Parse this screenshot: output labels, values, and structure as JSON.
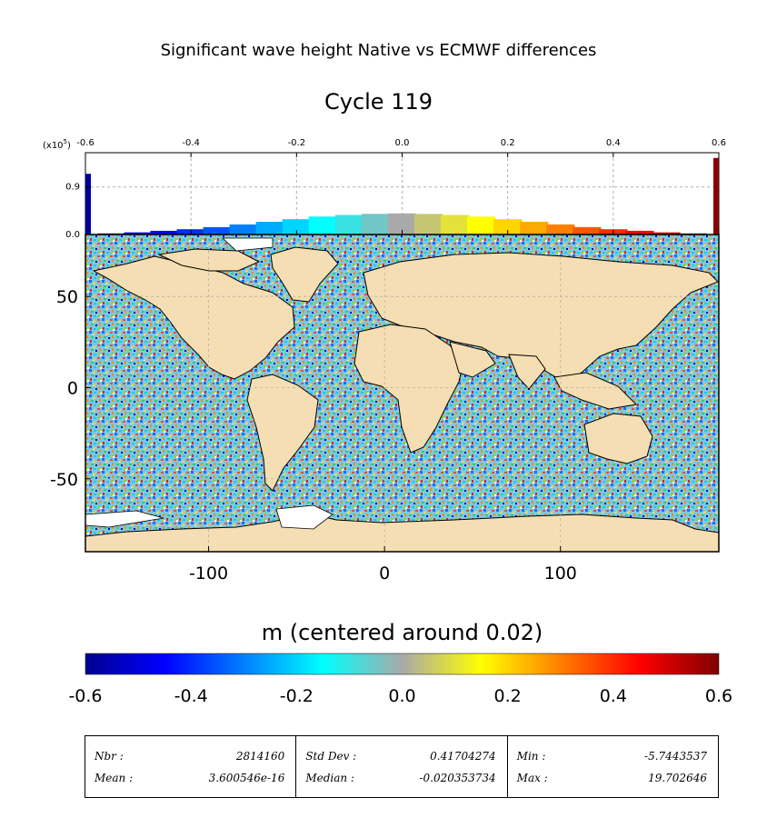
{
  "suptitle": "Significant wave height Native vs ECMWF differences",
  "title": "Cycle 119",
  "colors": {
    "land": "#f5deb3",
    "colormap": [
      "#00008f",
      "#0000ff",
      "#0080ff",
      "#00ffff",
      "#a9a9a9",
      "#ffff00",
      "#ff8000",
      "#ff0000",
      "#800000"
    ]
  },
  "chart_data": [
    {
      "type": "bar",
      "title": "",
      "multiplier_label": "(x10",
      "multiplier_exp": "5",
      "x_ticks": [
        "-0.6",
        "-0.4",
        "-0.2",
        "0.0",
        "0.2",
        "0.4",
        "0.6"
      ],
      "y_ticks": [
        "0.0",
        "0.9"
      ],
      "xlim": [
        -0.6,
        0.6
      ],
      "ylim": [
        0,
        1.55
      ],
      "grid": true,
      "bin_centers": [
        -0.59,
        -0.55,
        -0.5,
        -0.45,
        -0.4,
        -0.35,
        -0.3,
        -0.25,
        -0.2,
        -0.15,
        -0.1,
        -0.05,
        0.0,
        0.05,
        0.1,
        0.15,
        0.2,
        0.25,
        0.3,
        0.35,
        0.4,
        0.45,
        0.5,
        0.55,
        0.59
      ],
      "values": [
        1.15,
        0.02,
        0.04,
        0.07,
        0.1,
        0.14,
        0.19,
        0.24,
        0.29,
        0.34,
        0.37,
        0.39,
        0.4,
        0.39,
        0.37,
        0.34,
        0.29,
        0.24,
        0.19,
        0.14,
        0.1,
        0.07,
        0.04,
        0.02,
        1.45
      ]
    },
    {
      "type": "heatmap",
      "x_ticks": [
        "-100",
        "0",
        "100"
      ],
      "x_tick_values": [
        -100,
        0,
        100
      ],
      "y_ticks": [
        "50",
        "0",
        "-50"
      ],
      "y_tick_values": [
        50,
        0,
        -50
      ],
      "xlim": [
        -170,
        190
      ],
      "ylim": [
        -90,
        84
      ],
      "grid": true
    }
  ],
  "colorbar": {
    "label": "m (centered around 0.02)",
    "ticks": [
      "-0.6",
      "-0.4",
      "-0.2",
      "0.0",
      "0.2",
      "0.4",
      "0.6"
    ],
    "range": [
      -0.6,
      0.6
    ]
  },
  "stats": [
    {
      "label1": "Nbr :",
      "value1": "2814160",
      "label2": "Mean :",
      "value2": "3.600546e-16"
    },
    {
      "label1": "Std Dev :",
      "value1": "0.41704274",
      "label2": "Median :",
      "value2": "-0.020353734"
    },
    {
      "label1": "Min :",
      "value1": "-5.7443537",
      "label2": "Max :",
      "value2": "19.702646"
    }
  ]
}
